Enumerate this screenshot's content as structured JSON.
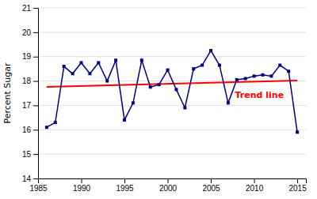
{
  "chart_data": {
    "type": "line",
    "ylabel": "Percent Sugar",
    "x": [
      1986,
      1987,
      1988,
      1989,
      1990,
      1991,
      1992,
      1993,
      1994,
      1995,
      1996,
      1997,
      1998,
      1999,
      2000,
      2001,
      2002,
      2003,
      2004,
      2005,
      2006,
      2007,
      2008,
      2009,
      2010,
      2011,
      2012,
      2013,
      2014,
      2015
    ],
    "series": [
      {
        "x": [
          1986,
          2015
        ],
        "values": [
          17.76,
          18.02
        ],
        "color": "#FF0000"
      },
      {
        "values": [
          16.1,
          16.3,
          18.6,
          18.3,
          18.75,
          18.3,
          18.75,
          18.0,
          18.85,
          16.4,
          17.1,
          18.85,
          17.75,
          17.85,
          18.45,
          17.65,
          16.9,
          18.5,
          18.65,
          19.25,
          18.65,
          17.1,
          18.05,
          18.1,
          18.2,
          18.25,
          18.2,
          18.65,
          18.4,
          15.9
        ],
        "color": "#000080",
        "marker": "square"
      }
    ],
    "annotations": [
      {
        "text": "Trend line",
        "x": 2007.8,
        "y": 17.63,
        "color": "#FF0000"
      }
    ],
    "xlim": [
      1985,
      2016
    ],
    "xticks": [
      1985,
      1990,
      1995,
      2000,
      2005,
      2010,
      2015
    ],
    "ylim": [
      14,
      21
    ],
    "yticks": [
      14,
      15,
      16,
      17,
      18,
      19,
      20,
      21
    ],
    "grid": "y"
  }
}
